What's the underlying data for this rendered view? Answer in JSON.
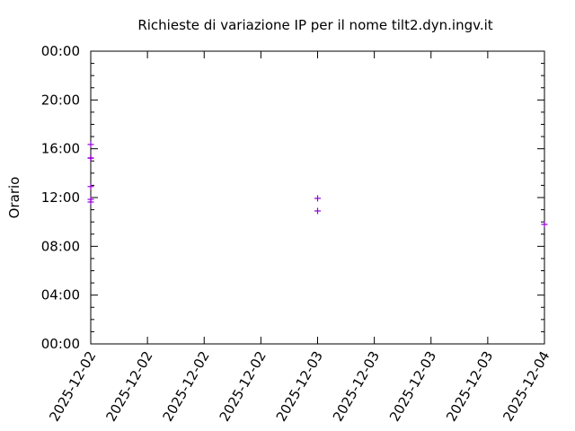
{
  "chart_data": {
    "type": "scatter",
    "title": "Richieste di variazione IP per il nome tilt2.dyn.ingv.it",
    "xlabel": "",
    "ylabel": "Orario",
    "xlim": [
      "2025-12-02 00:00",
      "2025-12-04 00:00"
    ],
    "ylim": [
      "00:00",
      "24:00"
    ],
    "x_tick_labels": [
      "2025-12-02",
      "2025-12-02",
      "2025-12-02",
      "2025-12-02",
      "2025-12-03",
      "2025-12-03",
      "2025-12-03",
      "2025-12-03",
      "2025-12-04"
    ],
    "y_tick_labels": [
      "00:00",
      "04:00",
      "08:00",
      "12:00",
      "16:00",
      "20:00",
      "00:00"
    ],
    "marker": "plus",
    "color": "#9400d3",
    "grid": false,
    "points": [
      {
        "x": "2025-12-02",
        "y": "16:21"
      },
      {
        "x": "2025-12-02",
        "y": "15:14"
      },
      {
        "x": "2025-12-02",
        "y": "15:14"
      },
      {
        "x": "2025-12-02",
        "y": "15:15"
      },
      {
        "x": "2025-12-02",
        "y": "12:54"
      },
      {
        "x": "2025-12-02",
        "y": "11:51"
      },
      {
        "x": "2025-12-02",
        "y": "11:38"
      },
      {
        "x": "2025-12-03",
        "y": "11:56"
      },
      {
        "x": "2025-12-03",
        "y": "10:54"
      },
      {
        "x": "2025-12-04",
        "y": "09:48"
      }
    ]
  }
}
